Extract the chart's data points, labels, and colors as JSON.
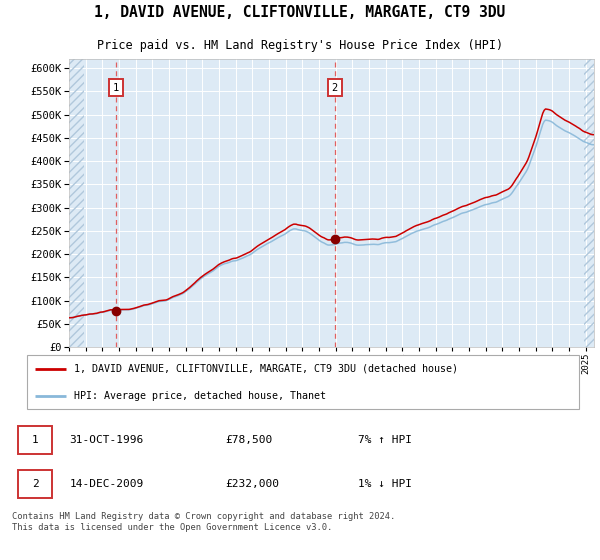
{
  "title": "1, DAVID AVENUE, CLIFTONVILLE, MARGATE, CT9 3DU",
  "subtitle": "Price paid vs. HM Land Registry's House Price Index (HPI)",
  "legend_line1": "1, DAVID AVENUE, CLIFTONVILLE, MARGATE, CT9 3DU (detached house)",
  "legend_line2": "HPI: Average price, detached house, Thanet",
  "footnote": "Contains HM Land Registry data © Crown copyright and database right 2024.\nThis data is licensed under the Open Government Licence v3.0.",
  "table_rows": [
    {
      "num": "1",
      "date": "31-OCT-1996",
      "price": "£78,500",
      "hpi": "7% ↑ HPI"
    },
    {
      "num": "2",
      "date": "14-DEC-2009",
      "price": "£232,000",
      "hpi": "1% ↓ HPI"
    }
  ],
  "sale1_year": 1996.83,
  "sale1_price": 78500,
  "sale2_year": 2009.95,
  "sale2_price": 232000,
  "hpi_line_color": "#89b8d9",
  "price_line_color": "#cc0000",
  "vline_color": "#e06060",
  "dot_color": "#880000",
  "plot_bg": "#ddeaf5",
  "ylim_max": 620000,
  "ylim_min": 0,
  "xmin": 1994.0,
  "xmax": 2025.5
}
